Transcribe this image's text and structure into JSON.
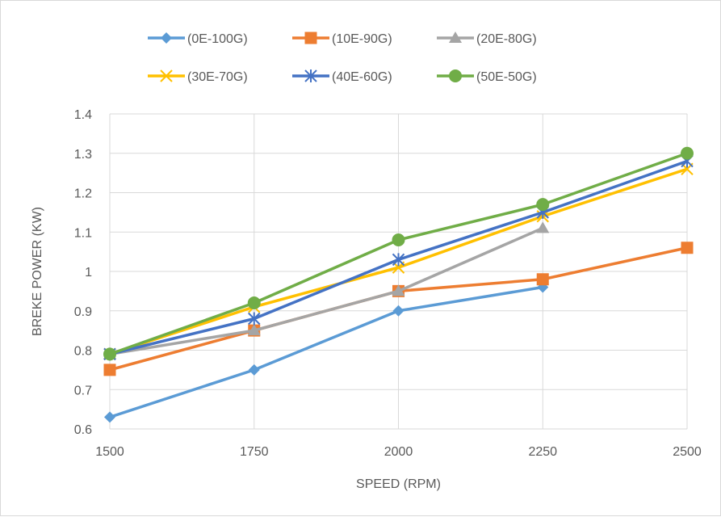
{
  "chart_data": {
    "type": "line",
    "title": "",
    "xlabel": "SPEED  (RPM)",
    "ylabel": "BREKE POWER (KW)",
    "x": [
      1500,
      1750,
      2000,
      2250,
      2500
    ],
    "x_tick_labels": [
      "1500",
      "1750",
      "2000",
      "2250",
      "2500"
    ],
    "y_tick_labels": [
      "0.6",
      "0.7",
      "0.8",
      "0.9",
      "1",
      "1.1",
      "1.2",
      "1.3",
      "1.4"
    ],
    "ylim": [
      0.6,
      1.4
    ],
    "xlim": [
      1500,
      2500
    ],
    "grid": true,
    "legend_position": "top",
    "series": [
      {
        "name": "(0E-100G)",
        "color": "#5b9bd5",
        "marker": "diamond",
        "values": [
          0.63,
          0.75,
          0.9,
          0.96,
          null
        ]
      },
      {
        "name": "(10E-90G)",
        "color": "#ed7d31",
        "marker": "square",
        "values": [
          0.75,
          0.85,
          0.95,
          0.98,
          1.06
        ]
      },
      {
        "name": "(20E-80G)",
        "color": "#a5a5a5",
        "marker": "triangle",
        "values": [
          0.79,
          0.85,
          0.95,
          1.11,
          null
        ]
      },
      {
        "name": "(30E-70G)",
        "color": "#ffc000",
        "marker": "x",
        "values": [
          0.79,
          0.91,
          1.01,
          1.14,
          1.26
        ]
      },
      {
        "name": "(40E-60G)",
        "color": "#4472c4",
        "marker": "star",
        "values": [
          0.79,
          0.88,
          1.03,
          1.15,
          1.28
        ]
      },
      {
        "name": "(50E-50G)",
        "color": "#70ad47",
        "marker": "circle",
        "values": [
          0.79,
          0.92,
          1.08,
          1.17,
          1.3
        ]
      }
    ]
  }
}
